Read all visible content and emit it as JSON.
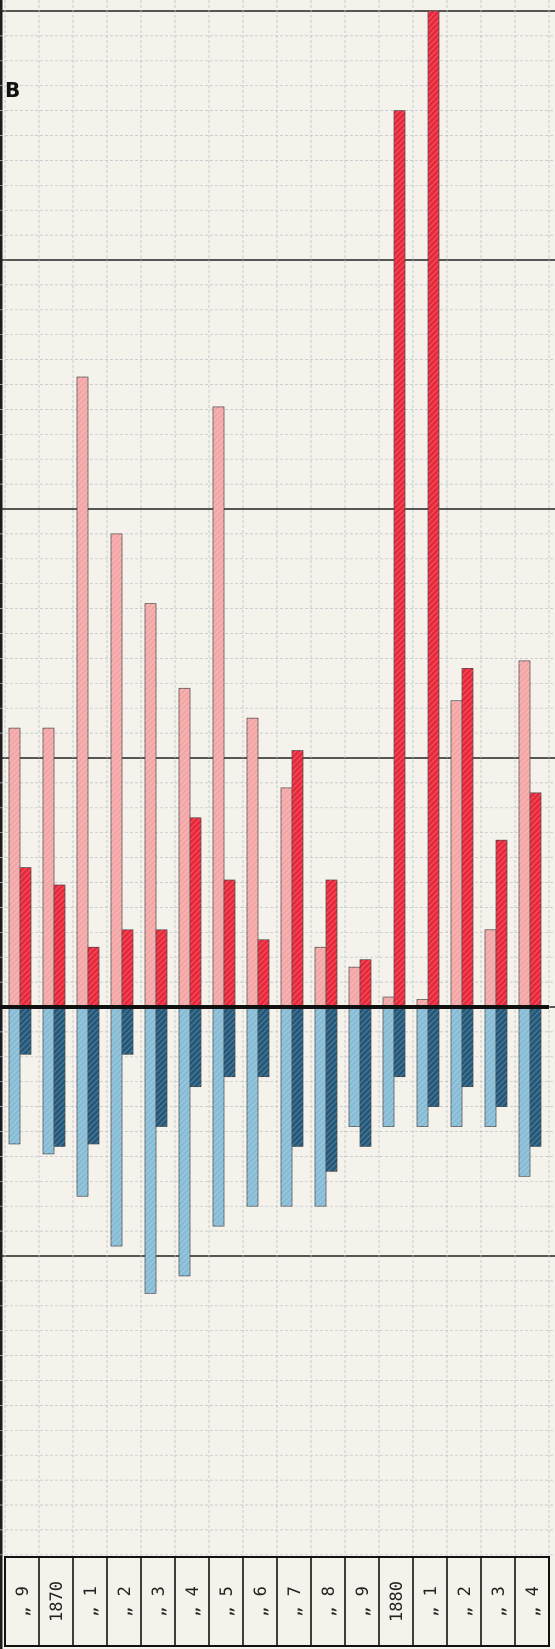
{
  "corner_label": "B",
  "chart_data": {
    "type": "bar",
    "title": "",
    "xlabel": "",
    "ylabel": "",
    "ylim": [
      -10,
      40
    ],
    "grid": true,
    "categories": [
      "„ 9",
      "1870",
      "„ 1",
      "„ 2",
      "„ 3",
      "„ 4",
      "„ 5",
      "„ 6",
      "„ 7",
      "„ 8",
      "„ 9",
      "1880",
      "„ 1",
      "„ 2",
      "„ 3",
      "„ 4"
    ],
    "series": [
      {
        "color": "#f4a6a6",
        "values": [
          11.2,
          11.2,
          25.3,
          19.0,
          16.2,
          12.8,
          24.1,
          11.6,
          8.8,
          2.4,
          1.6,
          0.4,
          0.3,
          12.3,
          3.1,
          13.9
        ]
      },
      {
        "color": "#e8283a",
        "values": [
          5.6,
          4.9,
          2.4,
          3.1,
          3.1,
          7.6,
          5.1,
          2.7,
          10.3,
          5.1,
          1.9,
          36.0,
          40.0,
          13.6,
          6.7,
          8.6
        ]
      },
      {
        "color": "#86bcd6",
        "values": [
          -5.5,
          -5.9,
          -7.6,
          -9.6,
          -11.5,
          -10.8,
          -8.8,
          -8.0,
          -8.0,
          -8.0,
          -4.8,
          -4.8,
          -4.8,
          -4.8,
          -4.8,
          -6.8
        ]
      },
      {
        "color": "#23587a",
        "values": [
          -1.9,
          -5.6,
          -5.5,
          -1.9,
          -4.8,
          -3.2,
          -2.8,
          -2.8,
          -5.6,
          -6.6,
          -5.6,
          -2.8,
          -4.0,
          -3.2,
          -4.0,
          -5.6
        ]
      }
    ]
  }
}
